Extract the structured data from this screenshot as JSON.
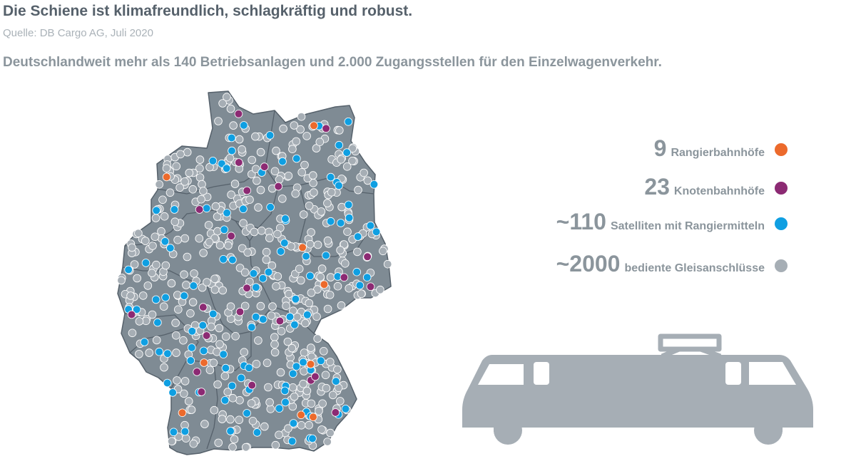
{
  "header": {
    "title": "Die Schiene ist klimafreundlich, schlagkräftig und robust.",
    "source": "Quelle: DB Cargo AG, Juli 2020",
    "subtitle": "Deutschlandweit mehr als 140 Betriebsanlagen und 2.000 Zugangsstellen für den Einzelwagenverkehr."
  },
  "legend": [
    {
      "number": "9",
      "label": "Rangierbahnhöfe",
      "color": "#ec6a2c"
    },
    {
      "number": "23",
      "label": "Knotenbahnhöfe",
      "color": "#8c2a73"
    },
    {
      "number": "~110",
      "label": "Satelliten mit Rangiermitteln",
      "color": "#0f9fe2"
    },
    {
      "number": "~2000",
      "label": "bediente Gleisanschlüsse",
      "color": "#a6aeb5"
    }
  ],
  "colors": {
    "map_fill": "#7f8b94",
    "map_border": "#56616b",
    "train_fill": "#a6aeb5",
    "title": "#56616b",
    "muted_text": "#8b959c"
  }
}
